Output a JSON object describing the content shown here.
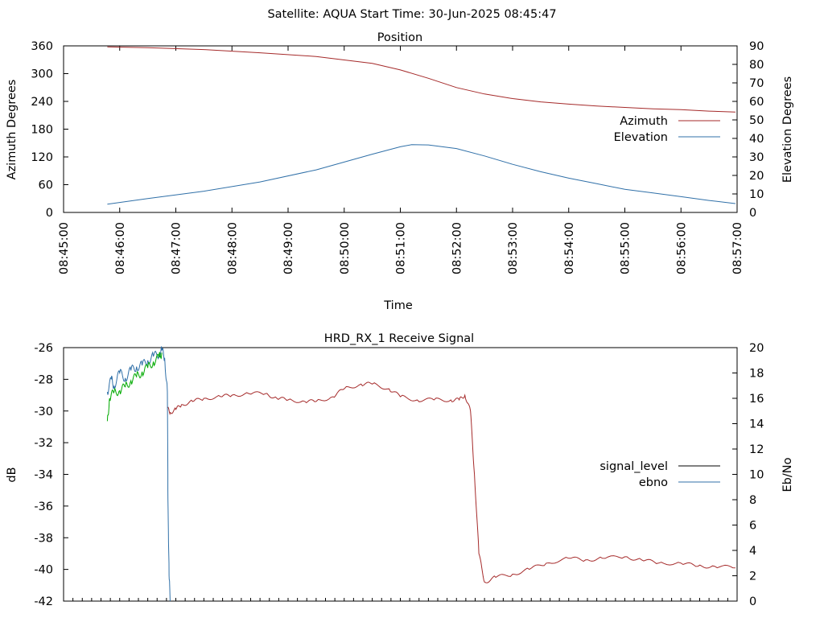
{
  "header": {
    "title": "Satellite: AQUA    Start Time: 30-Jun-2025 08:45:47"
  },
  "chart_data": [
    {
      "type": "line",
      "title": "Position",
      "xlabel": "Time",
      "ylabel": "Azimuth Degrees",
      "y2label": "Elevation Degrees",
      "xlim": [
        0,
        12
      ],
      "ylim": [
        0,
        360
      ],
      "y2lim": [
        0,
        90
      ],
      "grid": false,
      "legend_position": "right",
      "x_ticks": [
        {
          "v": 0,
          "label": "08:45:00"
        },
        {
          "v": 1,
          "label": "08:46:00"
        },
        {
          "v": 2,
          "label": "08:47:00"
        },
        {
          "v": 3,
          "label": "08:48:00"
        },
        {
          "v": 4,
          "label": "08:49:00"
        },
        {
          "v": 5,
          "label": "08:50:00"
        },
        {
          "v": 6,
          "label": "08:51:00"
        },
        {
          "v": 7,
          "label": "08:52:00"
        },
        {
          "v": 8,
          "label": "08:53:00"
        },
        {
          "v": 9,
          "label": "08:54:00"
        },
        {
          "v": 10,
          "label": "08:55:00"
        },
        {
          "v": 11,
          "label": "08:56:00"
        },
        {
          "v": 12,
          "label": "08:57:00"
        }
      ],
      "y_ticks": [
        {
          "v": 0,
          "label": "0"
        },
        {
          "v": 60,
          "label": "60"
        },
        {
          "v": 120,
          "label": "120"
        },
        {
          "v": 180,
          "label": "180"
        },
        {
          "v": 240,
          "label": "240"
        },
        {
          "v": 300,
          "label": "300"
        },
        {
          "v": 360,
          "label": "360"
        }
      ],
      "y2_ticks": [
        {
          "v": 0,
          "label": "0"
        },
        {
          "v": 10,
          "label": "10"
        },
        {
          "v": 20,
          "label": "20"
        },
        {
          "v": 30,
          "label": "30"
        },
        {
          "v": 40,
          "label": "40"
        },
        {
          "v": 50,
          "label": "50"
        },
        {
          "v": 60,
          "label": "60"
        },
        {
          "v": 70,
          "label": "70"
        },
        {
          "v": 80,
          "label": "80"
        },
        {
          "v": 90,
          "label": "90"
        }
      ],
      "series": [
        {
          "name": "Azimuth",
          "axis": "y",
          "color": "#a52a2a",
          "x": [
            0.78,
            1.5,
            2.5,
            3.5,
            4.5,
            5.5,
            6.0,
            6.5,
            7.0,
            7.5,
            8.0,
            8.5,
            9.0,
            9.5,
            10.0,
            10.5,
            11.0,
            11.5,
            11.97
          ],
          "y": [
            358,
            356,
            352,
            345,
            337,
            322,
            308,
            290,
            270,
            256,
            246,
            239,
            234,
            230,
            227,
            224,
            222,
            219,
            217
          ]
        },
        {
          "name": "Elevation",
          "axis": "y2",
          "color": "#3070a8",
          "x": [
            0.78,
            1.5,
            2.5,
            3.5,
            4.5,
            5.5,
            6.0,
            6.2,
            6.5,
            7.0,
            7.5,
            8.0,
            8.5,
            9.0,
            9.5,
            10.0,
            10.5,
            11.0,
            11.5,
            11.97
          ],
          "y": [
            4.5,
            7.5,
            11.5,
            16.5,
            23.0,
            31.5,
            35.5,
            36.6,
            36.5,
            34.5,
            30.5,
            26.0,
            22.0,
            18.5,
            15.5,
            12.5,
            10.5,
            8.5,
            6.5,
            4.8
          ]
        }
      ]
    },
    {
      "type": "line",
      "title": "HRD_RX_1 Receive Signal",
      "xlabel": "",
      "ylabel": "dB",
      "y2label": "Eb/No",
      "xlim": [
        0,
        12
      ],
      "ylim": [
        -42,
        -26
      ],
      "y2lim": [
        0,
        20
      ],
      "grid": false,
      "legend_position": "right",
      "y_ticks": [
        {
          "v": -26,
          "label": "-26"
        },
        {
          "v": -28,
          "label": "-28"
        },
        {
          "v": -30,
          "label": "-30"
        },
        {
          "v": -32,
          "label": "-32"
        },
        {
          "v": -34,
          "label": "-34"
        },
        {
          "v": -36,
          "label": "-36"
        },
        {
          "v": -38,
          "label": "-38"
        },
        {
          "v": -40,
          "label": "-40"
        },
        {
          "v": -42,
          "label": "-42"
        }
      ],
      "y2_ticks": [
        {
          "v": 0,
          "label": "0"
        },
        {
          "v": 2,
          "label": "2"
        },
        {
          "v": 4,
          "label": "4"
        },
        {
          "v": 6,
          "label": "6"
        },
        {
          "v": 8,
          "label": "8"
        },
        {
          "v": 10,
          "label": "10"
        },
        {
          "v": 12,
          "label": "12"
        },
        {
          "v": 14,
          "label": "14"
        },
        {
          "v": 16,
          "label": "16"
        },
        {
          "v": 18,
          "label": "18"
        },
        {
          "v": 20,
          "label": "20"
        }
      ],
      "series": [
        {
          "name": "signal_level",
          "axis": "y",
          "color": "#000000",
          "plotted_color": "#a52a2a",
          "x": [
            1.85,
            1.9,
            2.0,
            2.1,
            2.3,
            2.5,
            2.8,
            3.0,
            3.3,
            3.6,
            3.8,
            4.0,
            4.3,
            4.5,
            4.8,
            5.0,
            5.3,
            5.5,
            5.8,
            6.0,
            6.3,
            6.6,
            6.9,
            7.05,
            7.15,
            7.25,
            7.32,
            7.4,
            7.5,
            7.7,
            8.0,
            8.3,
            8.6,
            9.0,
            9.3,
            9.6,
            10.0,
            10.3,
            10.6,
            11.0,
            11.3,
            11.6,
            11.97
          ],
          "y": [
            -29.8,
            -30.1,
            -29.9,
            -29.6,
            -29.4,
            -29.2,
            -29.1,
            -29.0,
            -28.9,
            -28.9,
            -29.2,
            -29.3,
            -29.4,
            -29.4,
            -29.1,
            -28.6,
            -28.3,
            -28.3,
            -28.6,
            -29.1,
            -29.3,
            -29.3,
            -29.3,
            -29.3,
            -29.0,
            -30.0,
            -34.0,
            -39.0,
            -40.8,
            -40.5,
            -40.3,
            -40.0,
            -39.6,
            -39.3,
            -39.4,
            -39.3,
            -39.2,
            -39.4,
            -39.6,
            -39.6,
            -39.8,
            -39.8,
            -39.9
          ]
        },
        {
          "name": "ebno",
          "axis": "y2",
          "color": "#3070a8",
          "x": [
            0.78,
            0.85,
            0.9,
            1.0,
            1.1,
            1.2,
            1.3,
            1.4,
            1.5,
            1.6,
            1.7,
            1.75,
            1.8,
            1.85,
            1.86,
            1.88,
            1.9
          ],
          "y": [
            16.5,
            17.5,
            17.0,
            18.0,
            17.6,
            18.2,
            18.5,
            18.6,
            19.0,
            19.3,
            19.5,
            19.8,
            19.2,
            16.5,
            8.0,
            2.0,
            0.0
          ]
        },
        {
          "name": "",
          "axis": "y2",
          "color": "#00aa00",
          "x": [
            0.78,
            0.82,
            0.9,
            1.0,
            1.1,
            1.2,
            1.3,
            1.4,
            1.5,
            1.6,
            1.7,
            1.75
          ],
          "y": [
            14.2,
            16.0,
            16.5,
            16.6,
            16.9,
            17.4,
            17.7,
            18.1,
            18.4,
            18.9,
            19.2,
            19.6
          ]
        }
      ]
    }
  ]
}
